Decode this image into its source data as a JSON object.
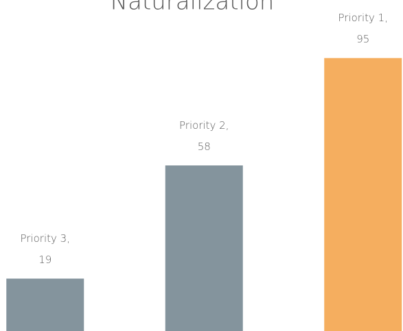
{
  "chart_data": {
    "type": "bar",
    "title": "Naturalization",
    "categories": [
      "Priority 3,",
      "Priority 2,",
      "Priority 1,"
    ],
    "values": [
      19,
      58,
      95
    ],
    "colors": [
      "#84949d",
      "#84949d",
      "#f5ae5f"
    ],
    "ylim": [
      0,
      115
    ]
  }
}
